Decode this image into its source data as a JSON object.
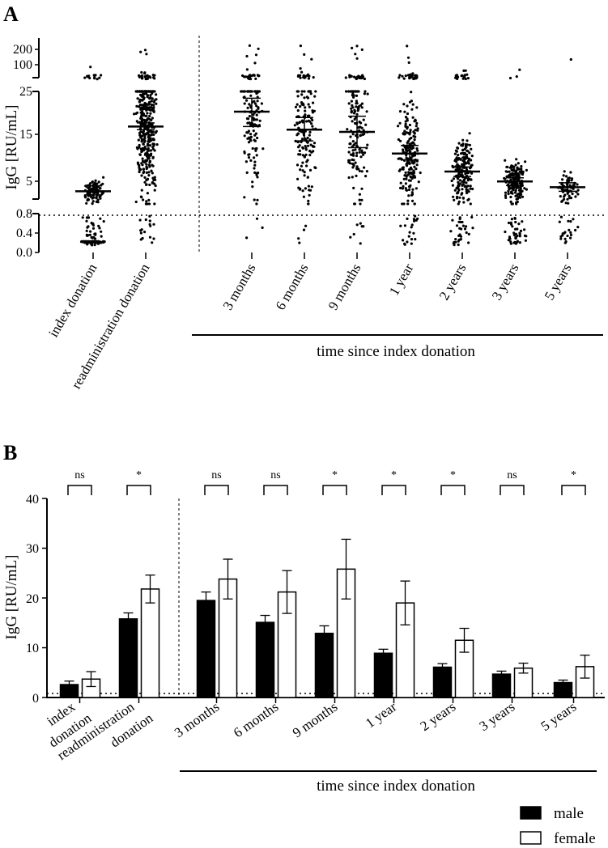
{
  "chart_data": [
    {
      "panel": "A",
      "type": "scatter",
      "ylabel": "IgG [RU/mL]",
      "axis_segments": [
        {
          "range": [
            0.0,
            0.8
          ],
          "ticks": [
            "0.0",
            "0.4",
            "0.8"
          ]
        },
        {
          "range": [
            0,
            25
          ],
          "ticks": [
            "5",
            "15",
            "25"
          ]
        },
        {
          "range": [
            50,
            250
          ],
          "ticks": [
            "100",
            "200"
          ]
        }
      ],
      "threshold": 0.8,
      "group_title": "time since index donation",
      "categories": [
        "index donation",
        "readministration donation",
        "3 months",
        "6 months",
        "9 months",
        "1 year",
        "2 years",
        "3 years",
        "5 years"
      ],
      "means": [
        2.8,
        17.2,
        20.5,
        16.5,
        16.0,
        11.2,
        7.2,
        5.0,
        3.7
      ],
      "error_low": [
        2.0,
        16.5,
        17.2,
        14.0,
        12.5,
        9.8,
        6.1,
        4.1,
        2.8
      ],
      "error_high": [
        4.0,
        18.0,
        23.5,
        19.2,
        19.5,
        13.0,
        8.2,
        5.8,
        4.7
      ],
      "n_points": [
        260,
        420,
        150,
        170,
        175,
        240,
        230,
        210,
        90
      ]
    },
    {
      "panel": "B",
      "type": "bar",
      "ylabel": "IgG [RU/mL]",
      "ylim": [
        0,
        40
      ],
      "yticks": [
        "0",
        "10",
        "20",
        "30",
        "40"
      ],
      "threshold": 0.8,
      "group_title": "time since index donation",
      "categories": [
        "index\ndonation",
        "readministration\ndonation",
        "3 months",
        "6 months",
        "9 months",
        "1 year",
        "2 years",
        "3 years",
        "5 years"
      ],
      "significance": [
        "ns",
        "*",
        "ns",
        "ns",
        "*",
        "*",
        "*",
        "ns",
        "*"
      ],
      "series": [
        {
          "name": "male",
          "color": "#000000",
          "values": [
            2.6,
            15.8,
            19.5,
            15.1,
            12.9,
            8.9,
            6.1,
            4.7,
            3.0
          ],
          "error": [
            0.7,
            1.2,
            1.7,
            1.4,
            1.5,
            0.8,
            0.7,
            0.6,
            0.5
          ]
        },
        {
          "name": "female",
          "color": "#ffffff",
          "values": [
            3.7,
            21.8,
            23.8,
            21.2,
            25.8,
            19.0,
            11.5,
            5.9,
            6.2
          ],
          "error": [
            1.5,
            2.8,
            4.0,
            4.3,
            6.0,
            4.4,
            2.4,
            1.0,
            2.3
          ]
        }
      ]
    }
  ],
  "labels": {
    "panel_a": "A",
    "panel_b": "B",
    "ylabel_a": "IgG [RU/mL]",
    "ylabel_b": "IgG [RU/mL]",
    "a_tick_200": "200",
    "a_tick_100": "100",
    "a_tick_25": "25",
    "a_tick_15": "15",
    "a_tick_5": "5",
    "a_tick_08": "0.8",
    "a_tick_04": "0.4",
    "a_tick_00": "0.0",
    "b_tick_40": "40",
    "b_tick_30": "30",
    "b_tick_20": "20",
    "b_tick_10": "10",
    "b_tick_0": "0",
    "group_a": "time since index donation",
    "group_b": "time since index donation",
    "legend_male": "male",
    "legend_female": "female",
    "cat_a_0": "index donation",
    "cat_a_1": "readministration donation",
    "cat_a_2": "3 months",
    "cat_a_3": "6 months",
    "cat_a_4": "9 months",
    "cat_a_5": "1 year",
    "cat_a_6": "2 years",
    "cat_a_7": "3 years",
    "cat_a_8": "5 years",
    "cat_b_0a": "index",
    "cat_b_0b": "donation",
    "cat_b_1a": "readministration",
    "cat_b_1b": "donation",
    "cat_b_2": "3 months",
    "cat_b_3": "6 months",
    "cat_b_4": "9 months",
    "cat_b_5": "1 year",
    "cat_b_6": "2 years",
    "cat_b_7": "3 years",
    "cat_b_8": "5 years",
    "sig_0": "ns",
    "sig_1": "*",
    "sig_2": "ns",
    "sig_3": "ns",
    "sig_4": "*",
    "sig_5": "*",
    "sig_6": "*",
    "sig_7": "ns",
    "sig_8": "*"
  }
}
